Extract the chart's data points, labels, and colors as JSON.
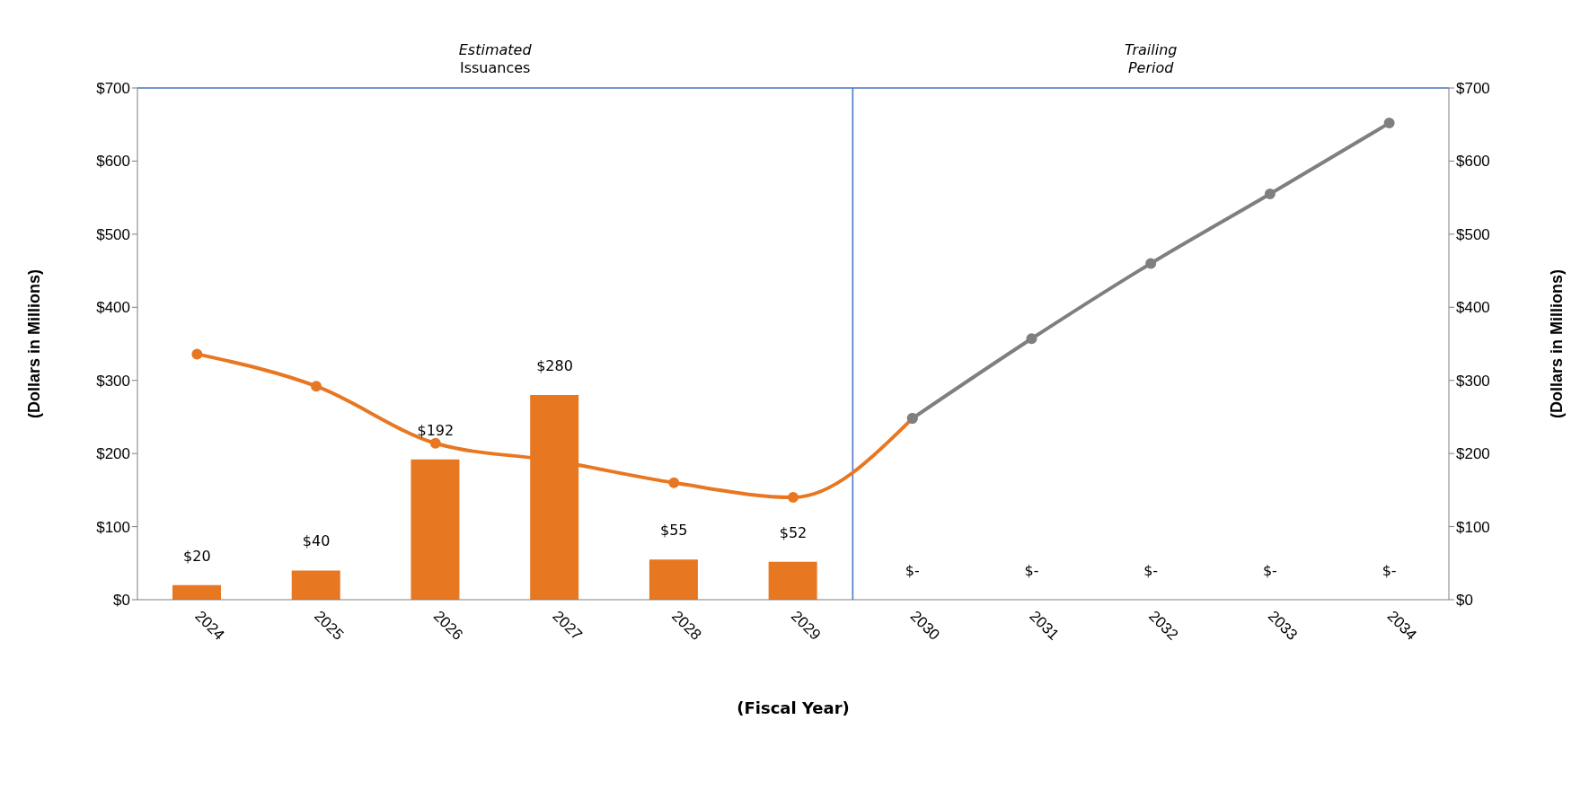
{
  "chart_data": {
    "type": "bar",
    "xlabel": "(Fiscal Year)",
    "ylabel": "(Dollars in Millions)",
    "y2label": "(Dollars in Millions)",
    "annotations": [
      "Estimated Issuances",
      "Trailing Period"
    ],
    "x": [
      2024,
      2025,
      2026,
      2027,
      2028,
      2029,
      2030,
      2031,
      2032,
      2033,
      2034
    ],
    "xlim": [
      2023.5,
      2034.5
    ],
    "xticks": [
      2024,
      2025,
      2026,
      2027,
      2028,
      2029,
      2030,
      2031,
      2032,
      2033,
      2034
    ],
    "ylim": [
      0,
      700
    ],
    "yticks": [
      {
        "value": 0,
        "label": "$0"
      },
      {
        "value": 100,
        "label": "$100"
      },
      {
        "value": 200,
        "label": "$200"
      },
      {
        "value": 300,
        "label": "$300"
      },
      {
        "value": 400,
        "label": "$400"
      },
      {
        "value": 500,
        "label": "$500"
      },
      {
        "value": 600,
        "label": "$600"
      },
      {
        "value": 700,
        "label": "$700"
      }
    ],
    "y2lim": [
      0,
      700
    ],
    "y2ticks": [
      {
        "value": 0,
        "label": "$0"
      },
      {
        "value": 100,
        "label": "$100"
      },
      {
        "value": 200,
        "label": "$200"
      },
      {
        "value": 300,
        "label": "$300"
      },
      {
        "value": 400,
        "label": "$400"
      },
      {
        "value": 500,
        "label": "$500"
      },
      {
        "value": 600,
        "label": "$600"
      },
      {
        "value": 700,
        "label": "$700"
      }
    ],
    "series": [
      {
        "color": "#e87722",
        "values": [
          20,
          40,
          192,
          280,
          55,
          52,
          0,
          0,
          0,
          0,
          0
        ],
        "value_labels": [
          "$20",
          "$40",
          "$192",
          "$280",
          "$55",
          "$52",
          "$-",
          "$-",
          "$-",
          "$-",
          "$-"
        ]
      },
      {
        "type": "line",
        "color": "#e87722",
        "values": [
          336,
          292,
          214,
          190,
          160,
          140,
          248,
          null,
          null,
          null,
          null
        ]
      },
      {
        "type": "line",
        "color": "#7f7f7f",
        "values": [
          null,
          null,
          null,
          null,
          null,
          null,
          248,
          357,
          460,
          555,
          652
        ]
      }
    ],
    "ref_lines": [
      {
        "axis": "x",
        "value": 2029.5,
        "color": "#4472c4"
      },
      {
        "axis": "y",
        "value": 700,
        "color": "#4472c4"
      }
    ],
    "marker": "circle",
    "grid": false,
    "legend": false
  }
}
